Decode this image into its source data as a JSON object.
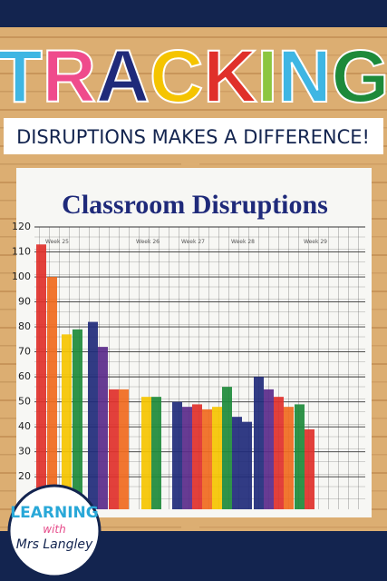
{
  "header": {
    "title": "TRACKING",
    "subtitle": "DISRUPTIONS MAKES A DIFFERENCE!"
  },
  "chart_data": {
    "type": "bar",
    "title": "Classroom Disruptions",
    "week_labels": [
      "Week 25",
      "Week 26",
      "Week 27",
      "Week 28",
      "Week 29"
    ],
    "values": [
      113,
      100,
      77,
      79,
      82,
      72,
      55,
      55,
      52,
      52,
      50,
      48,
      49,
      47,
      48,
      56,
      44,
      42,
      60,
      55,
      52,
      48,
      49,
      39
    ],
    "colors": [
      "#e0302a",
      "#f06a1e",
      "#f5c400",
      "#1d8a3a",
      "#1f2a7a",
      "#5a2a8a",
      "#e0302a",
      "#f06a1e",
      "#f5c400",
      "#1d8a3a",
      "#1f2a7a",
      "#5a2a8a",
      "#e0302a",
      "#f06a1e",
      "#f5c400",
      "#1d8a3a",
      "#1f2a7a",
      "#1f2a7a",
      "#1f2a7a",
      "#5a2a8a",
      "#e0302a",
      "#f06a1e",
      "#1d8a3a",
      "#e0302a"
    ],
    "ylim": [
      7,
      120
    ],
    "yticks": [
      20,
      30,
      40,
      50,
      60,
      70,
      80,
      90,
      100,
      110,
      120
    ],
    "grid": true
  },
  "logo": {
    "line1": "LEARNING",
    "line2": "with",
    "line3": "Mrs Langley"
  }
}
